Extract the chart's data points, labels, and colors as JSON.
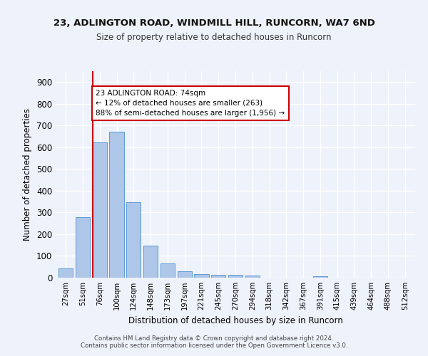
{
  "title1": "23, ADLINGTON ROAD, WINDMILL HILL, RUNCORN, WA7 6ND",
  "title2": "Size of property relative to detached houses in Runcorn",
  "xlabel": "Distribution of detached houses by size in Runcorn",
  "ylabel": "Number of detached properties",
  "bar_labels": [
    "27sqm",
    "51sqm",
    "76sqm",
    "100sqm",
    "124sqm",
    "148sqm",
    "173sqm",
    "197sqm",
    "221sqm",
    "245sqm",
    "270sqm",
    "294sqm",
    "318sqm",
    "342sqm",
    "367sqm",
    "391sqm",
    "415sqm",
    "439sqm",
    "464sqm",
    "488sqm",
    "512sqm"
  ],
  "bar_values": [
    42,
    280,
    622,
    670,
    348,
    148,
    65,
    30,
    17,
    12,
    12,
    10,
    0,
    0,
    0,
    8,
    0,
    0,
    0,
    0,
    0
  ],
  "bar_color": "#aec6e8",
  "bar_edge_color": "#5b9bd5",
  "vline_color": "#cc0000",
  "annotation_text": "23 ADLINGTON ROAD: 74sqm\n← 12% of detached houses are smaller (263)\n88% of semi-detached houses are larger (1,956) →",
  "annotation_box_color": "#ffffff",
  "annotation_box_edge_color": "#cc0000",
  "ylim": [
    0,
    950
  ],
  "yticks": [
    0,
    100,
    200,
    300,
    400,
    500,
    600,
    700,
    800,
    900
  ],
  "background_color": "#eef2fa",
  "footer": "Contains HM Land Registry data © Crown copyright and database right 2024.\nContains public sector information licensed under the Open Government Licence v3.0.",
  "grid_color": "#ffffff",
  "fig_bg": "#eef2fa"
}
